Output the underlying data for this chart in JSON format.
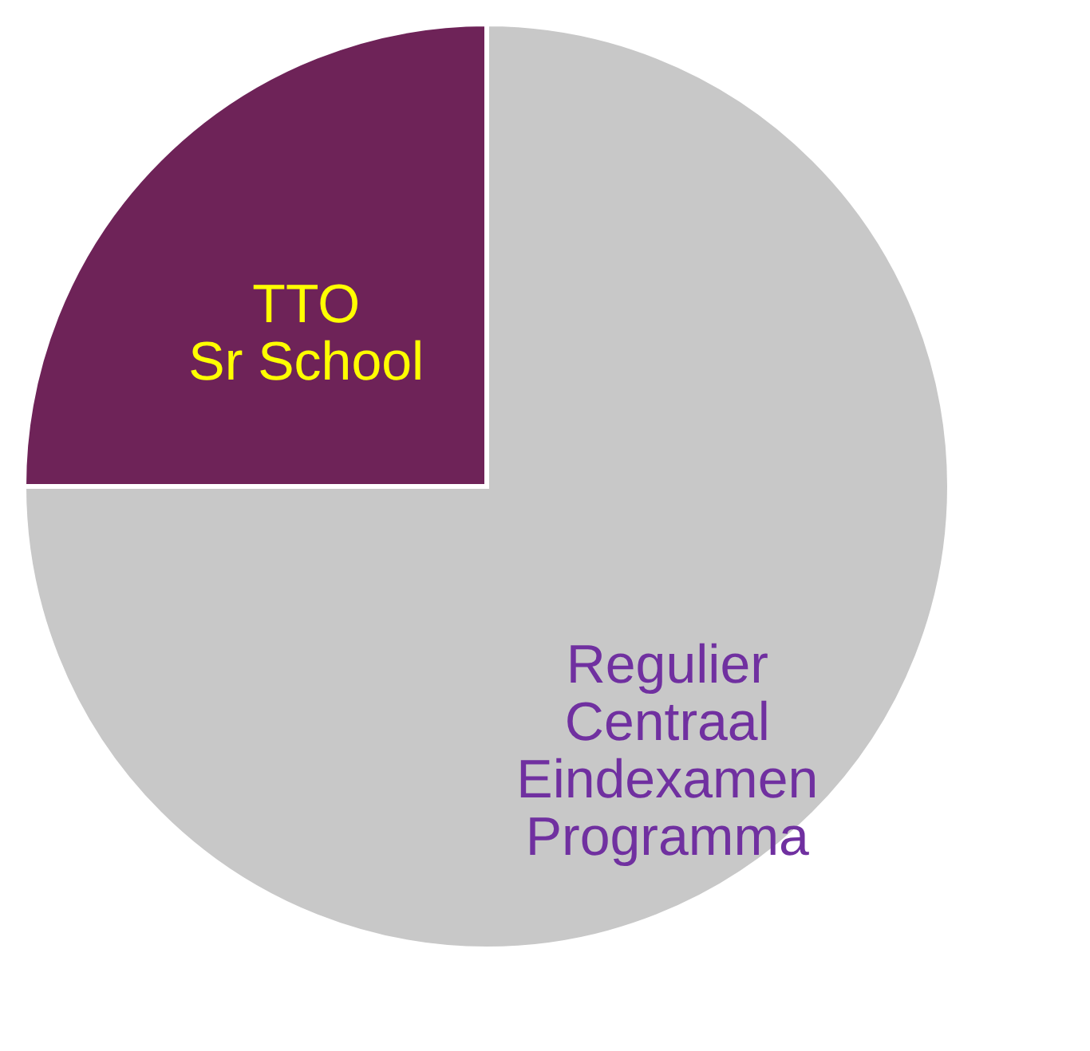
{
  "chart_data": {
    "type": "pie",
    "categories": [
      "TTO\nSr School",
      "Regulier\nCentraal\nEindexamen\nProgramma"
    ],
    "values": [
      25,
      75
    ],
    "colors": [
      "#6e2358",
      "#c8c8c8"
    ],
    "legend": false
  }
}
